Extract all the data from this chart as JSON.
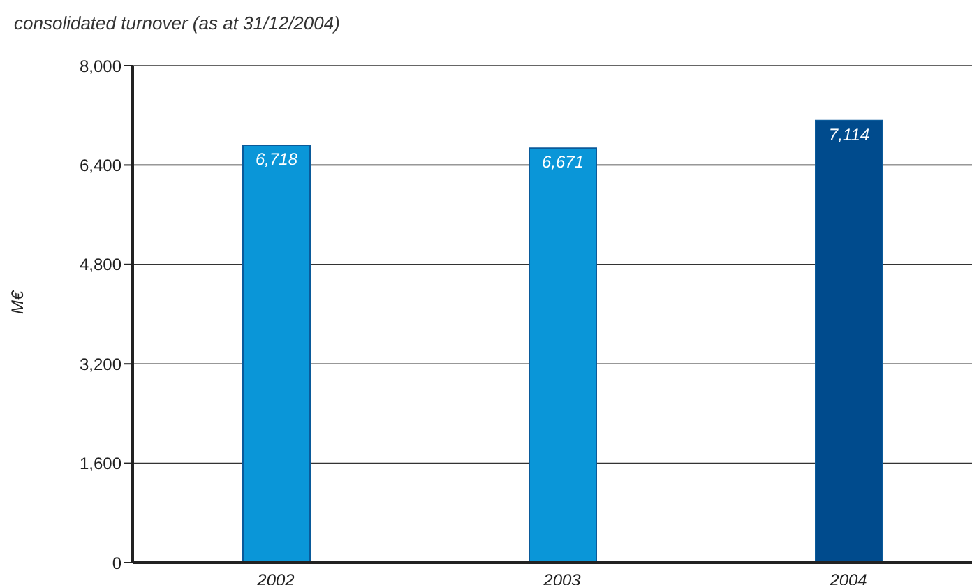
{
  "chart_data": {
    "type": "bar",
    "title": "consolidated turnover (as at 31/12/2004)",
    "ylabel": "M€",
    "categories": [
      "2002",
      "2003",
      "2004"
    ],
    "values": [
      6718,
      6671,
      7114
    ],
    "colors": [
      "#0a96d8",
      "#0a96d8",
      "#004b8d"
    ],
    "value_labels": [
      "6,718",
      "6,671",
      "7,114"
    ],
    "ylim": [
      0,
      8000
    ],
    "yticks": [
      {
        "value": 0,
        "label": "0"
      },
      {
        "value": 1600,
        "label": "1,600"
      },
      {
        "value": 3200,
        "label": "3,200"
      },
      {
        "value": 4800,
        "label": "4,800"
      },
      {
        "value": 6400,
        "label": "6,400"
      },
      {
        "value": 8000,
        "label": "8,000"
      }
    ],
    "grid": "y"
  }
}
